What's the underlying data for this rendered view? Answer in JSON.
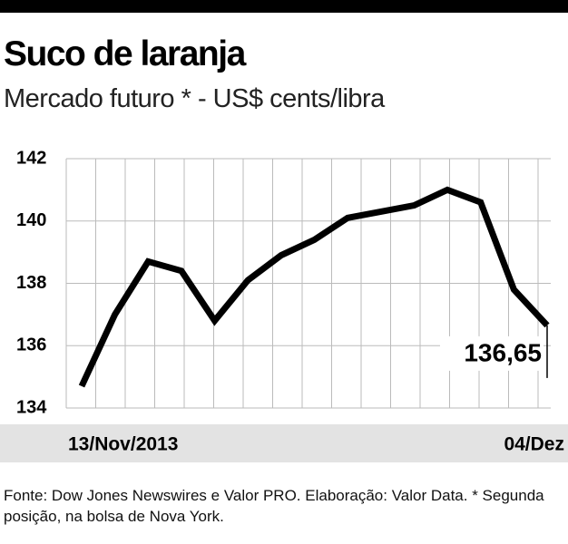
{
  "chart_data": {
    "type": "line",
    "title": "Suco de laranja",
    "subtitle": "Mercado futuro * - US$ cents/libra",
    "categories": [
      "13/Nov/2013",
      null,
      null,
      null,
      null,
      null,
      null,
      null,
      null,
      null,
      null,
      null,
      null,
      null,
      "04/Dez"
    ],
    "series": [
      {
        "name": "Suco de laranja",
        "color": "#000000",
        "values": [
          134.7,
          137.0,
          138.7,
          138.4,
          136.8,
          138.1,
          138.9,
          139.4,
          140.1,
          140.3,
          140.5,
          141.0,
          140.6,
          137.8,
          136.65
        ],
        "value_labels": [
          null,
          null,
          null,
          null,
          null,
          null,
          null,
          null,
          null,
          null,
          null,
          null,
          null,
          null,
          "136,65"
        ]
      }
    ],
    "ylim": [
      134,
      142
    ],
    "yticks": [
      134,
      136,
      138,
      140,
      142
    ],
    "grid": true,
    "note": "Fonte: Dow Jones Newswires e Valor PRO. Elaboração: Valor Data. * Segunda posição, na bolsa de Nova York."
  }
}
